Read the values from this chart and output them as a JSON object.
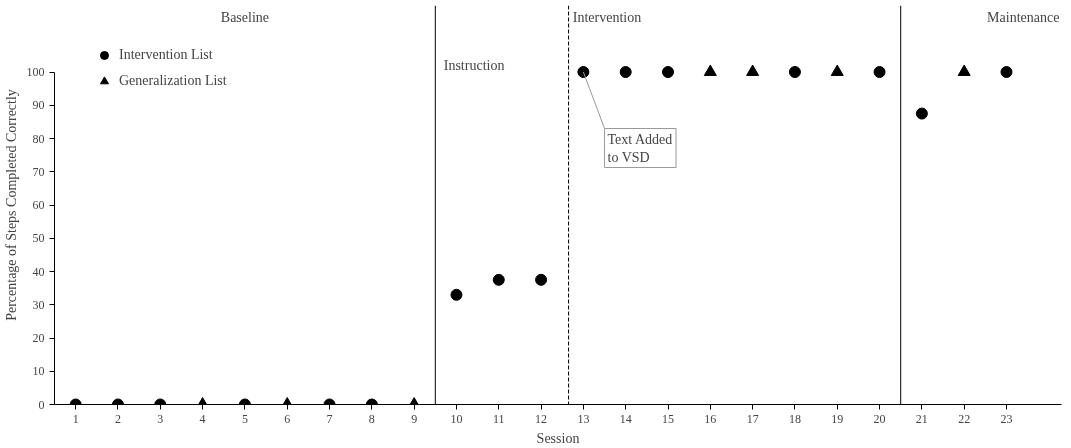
{
  "chart_data": {
    "type": "scatter",
    "xlabel": "Session",
    "ylabel": "Percentage of Steps Completed Correctly",
    "xlim": [
      0.5,
      24.3
    ],
    "ylim": [
      0,
      120
    ],
    "xticks": [
      1,
      2,
      3,
      4,
      5,
      6,
      7,
      8,
      9,
      10,
      11,
      12,
      13,
      14,
      15,
      16,
      17,
      18,
      19,
      20,
      21,
      22,
      23
    ],
    "yticks": [
      0,
      10,
      20,
      30,
      40,
      50,
      60,
      70,
      80,
      90,
      100
    ],
    "series": [
      {
        "name": "Intervention List",
        "color": "#000000",
        "marker": "circle",
        "x": [
          1,
          2,
          3,
          5,
          7,
          8,
          10,
          11,
          12,
          13,
          14,
          15,
          18,
          20,
          21,
          23
        ],
        "values": [
          0,
          0,
          0,
          0,
          0,
          0,
          33,
          37.5,
          37.5,
          100,
          100,
          100,
          100,
          100,
          87.5,
          100
        ]
      },
      {
        "name": "Generalization List",
        "color": "#000000",
        "marker": "triangle",
        "x": [
          4,
          6,
          9,
          16,
          17,
          19,
          22
        ],
        "values": [
          0,
          0,
          0,
          100,
          100,
          100,
          100
        ]
      }
    ],
    "ref_lines": [
      {
        "axis": "x",
        "value": 9.5,
        "color": "#000000",
        "line_style": "solid"
      },
      {
        "axis": "x",
        "value": 12.65,
        "color": "#000000",
        "line_style": "dashed"
      },
      {
        "axis": "x",
        "value": 20.5,
        "color": "#000000",
        "line_style": "solid"
      }
    ],
    "annotations": [
      "Baseline",
      "Intervention",
      "Maintenance",
      "Instruction",
      {
        "text": "Text Added\n to VSD",
        "x": 13,
        "y": 100
      }
    ],
    "legend": "top left",
    "grid": false
  }
}
